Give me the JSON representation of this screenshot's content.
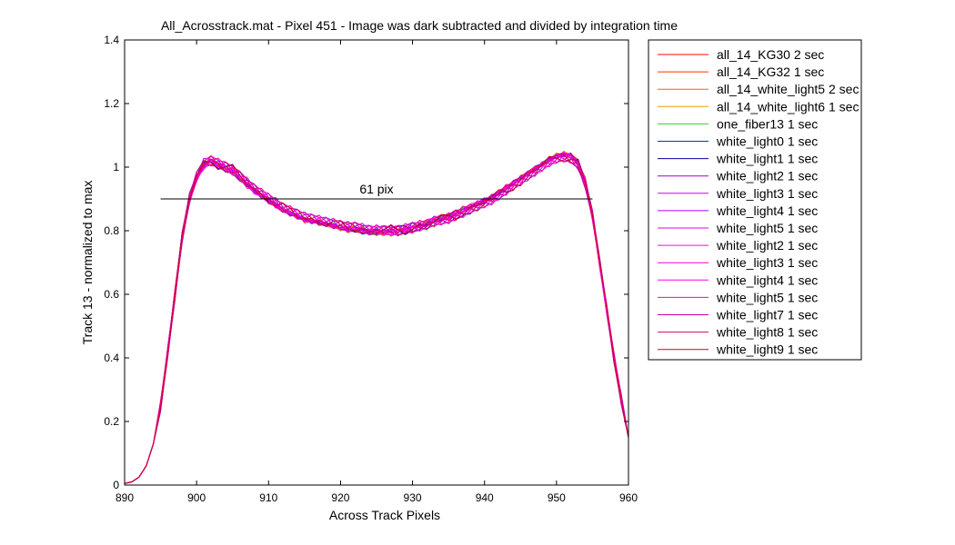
{
  "chart_data": {
    "type": "line",
    "title": "All_Acrosstrack.mat - Pixel 451 - Image was dark subtracted and divided by integration time",
    "xlabel": "Across Track Pixels",
    "ylabel": "Track 13 - normalized to max",
    "xlim": [
      890,
      960
    ],
    "ylim": [
      0,
      1.4
    ],
    "xticks": [
      890,
      900,
      910,
      920,
      930,
      940,
      950,
      960
    ],
    "yticks": [
      0,
      0.2,
      0.4,
      0.6,
      0.8,
      1,
      1.2,
      1.4
    ],
    "ytick_labels": [
      "0",
      "0.2",
      "0.4",
      "0.6",
      "0.8",
      "1",
      "1.2",
      "1.4"
    ],
    "grid": false,
    "legend_placement": "outside-right",
    "x": [
      890,
      891,
      892,
      893,
      894,
      895,
      896,
      897,
      898,
      899,
      900,
      901,
      902,
      903,
      904,
      905,
      906,
      907,
      908,
      909,
      910,
      911,
      912,
      913,
      914,
      915,
      916,
      917,
      918,
      919,
      920,
      921,
      922,
      923,
      924,
      925,
      926,
      927,
      928,
      929,
      930,
      931,
      932,
      933,
      934,
      935,
      936,
      937,
      938,
      939,
      940,
      941,
      942,
      943,
      944,
      945,
      946,
      947,
      948,
      949,
      950,
      951,
      952,
      953,
      954,
      955,
      956,
      957,
      958,
      959,
      960
    ],
    "base_profile": [
      0.005,
      0.01,
      0.025,
      0.06,
      0.13,
      0.25,
      0.42,
      0.6,
      0.78,
      0.9,
      0.97,
      1.01,
      1.02,
      1.01,
      1.0,
      0.99,
      0.97,
      0.95,
      0.93,
      0.915,
      0.9,
      0.885,
      0.87,
      0.86,
      0.85,
      0.84,
      0.835,
      0.83,
      0.825,
      0.82,
      0.815,
      0.81,
      0.81,
      0.805,
      0.8,
      0.8,
      0.8,
      0.8,
      0.8,
      0.805,
      0.81,
      0.815,
      0.82,
      0.83,
      0.835,
      0.84,
      0.85,
      0.86,
      0.87,
      0.88,
      0.89,
      0.9,
      0.915,
      0.93,
      0.945,
      0.96,
      0.975,
      0.99,
      1.005,
      1.02,
      1.03,
      1.035,
      1.03,
      1.01,
      0.95,
      0.85,
      0.7,
      0.55,
      0.4,
      0.27,
      0.15
    ],
    "series": [
      {
        "name": "all_14_KG30 2 sec",
        "color": "#ff0000"
      },
      {
        "name": "all_14_KG32 1 sec",
        "color": "#ff3000"
      },
      {
        "name": "all_14_white_light5 2 sec",
        "color": "#ff6600"
      },
      {
        "name": "all_14_white_light6 1 sec",
        "color": "#e8a000"
      },
      {
        "name": "one_fiber13 1 sec",
        "color": "#33cc33"
      },
      {
        "name": "white_light0 1 sec",
        "color": "#0033cc"
      },
      {
        "name": "white_light1 1 sec",
        "color": "#000099"
      },
      {
        "name": "white_light2 1 sec",
        "color": "#9900cc"
      },
      {
        "name": "white_light3 1 sec",
        "color": "#cc00ee"
      },
      {
        "name": "white_light4 1 sec",
        "color": "#aa00ff"
      },
      {
        "name": "white_light5 1 sec",
        "color": "#dd00dd"
      },
      {
        "name": "white_light2 1 sec",
        "color": "#ff00ff"
      },
      {
        "name": "white_light3 1 sec",
        "color": "#ee00cc"
      },
      {
        "name": "white_light4 1 sec",
        "color": "#ff00ee"
      },
      {
        "name": "white_light5 1 sec",
        "color": "#ff00aa"
      },
      {
        "name": "white_light7 1 sec",
        "color": "#cc0099"
      },
      {
        "name": "white_light8 1 sec",
        "color": "#dd0066"
      },
      {
        "name": "white_light9 1 sec",
        "color": "#cc0033"
      }
    ],
    "annotation": {
      "text": "61 pix",
      "line_x": [
        895,
        955
      ],
      "line_y": 0.9,
      "color": "#000000"
    }
  }
}
